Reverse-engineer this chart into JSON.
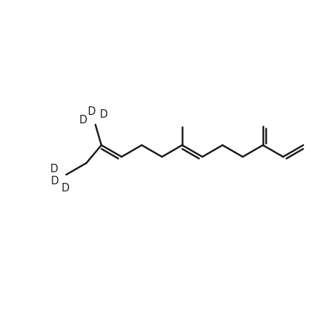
{
  "bg": "#ffffff",
  "lc": "#1a1a1a",
  "lw": 1.8,
  "fs": 10.5,
  "dbo": 0.095,
  "fig_w": 4.74,
  "fig_h": 4.74,
  "dpi": 100,
  "xlim": [
    0,
    10
  ],
  "ylim": [
    0,
    10
  ]
}
